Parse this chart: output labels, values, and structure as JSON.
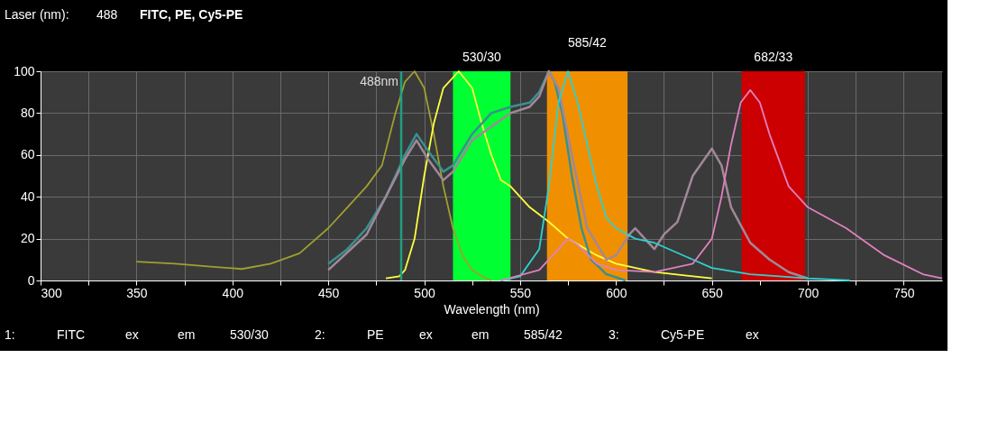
{
  "chart_data": {
    "type": "line",
    "title": "FITC, PE, Cy5-PE",
    "xlabel": "Wavelength (nm)",
    "xlim": [
      300,
      770
    ],
    "ylim": [
      0,
      100
    ],
    "xticks": [
      300,
      {
        "value": 325,
        "label": null
      },
      350,
      {
        "value": 375,
        "label": null
      },
      400,
      {
        "value": 425,
        "label": null
      },
      450,
      {
        "value": 475,
        "label": null
      },
      500,
      {
        "value": 525,
        "label": null
      },
      550,
      {
        "value": 575,
        "label": null
      },
      600,
      {
        "value": 625,
        "label": null
      },
      650,
      {
        "value": 675,
        "label": null
      },
      700,
      {
        "value": 725,
        "label": null
      },
      750
    ],
    "yticks": [
      0,
      20,
      40,
      60,
      80,
      100
    ],
    "grid": true,
    "marker": "none",
    "line_style": "solid",
    "series": [
      {
        "color": "#a0a030",
        "x": [
          350,
          370,
          390,
          405,
          420,
          435,
          450,
          460,
          470,
          478,
          485,
          490,
          495,
          500,
          505,
          510,
          515,
          520,
          525,
          530,
          535
        ],
        "values": [
          9,
          8,
          6.5,
          5.5,
          8,
          13,
          25,
          35,
          45,
          55,
          80,
          95,
          100,
          92,
          70,
          45,
          25,
          12,
          5,
          2,
          0
        ]
      },
      {
        "color": "#ffff40",
        "x": [
          480,
          487,
          490,
          495,
          500,
          505,
          510,
          518,
          525,
          530,
          535,
          540,
          545,
          555,
          565,
          575,
          590,
          600,
          620,
          650
        ],
        "values": [
          1,
          2,
          5,
          20,
          50,
          75,
          92,
          100,
          92,
          75,
          60,
          48,
          45,
          35,
          28,
          20,
          12,
          8,
          4,
          1
        ]
      },
      {
        "color": "#3a9090",
        "x": [
          450,
          460,
          470,
          480,
          490,
          496,
          502,
          510,
          515,
          525,
          535,
          545,
          555,
          560,
          565,
          568,
          572,
          577,
          582,
          587,
          595,
          605
        ],
        "values": [
          8,
          15,
          25,
          40,
          60,
          70,
          62,
          52,
          55,
          70,
          80,
          83,
          85,
          90,
          100,
          95,
          80,
          50,
          25,
          10,
          3,
          0
        ]
      },
      {
        "color": "#a08898",
        "x": [
          450,
          470,
          490,
          496,
          502,
          510,
          515,
          525,
          545,
          555,
          560,
          565,
          570,
          577,
          585,
          595,
          600,
          607,
          610,
          615,
          620,
          625,
          632,
          640,
          650,
          655,
          660,
          670,
          680,
          690,
          700
        ],
        "values": [
          5,
          22,
          58,
          67,
          58,
          48,
          52,
          67,
          80,
          83,
          88,
          100,
          92,
          60,
          25,
          10,
          12,
          22,
          25,
          20,
          15,
          22,
          28,
          50,
          63,
          55,
          35,
          18,
          10,
          4,
          1
        ]
      },
      {
        "color": "#30d0d0",
        "x": [
          540,
          550,
          560,
          565,
          570,
          575,
          580,
          585,
          590,
          595,
          600,
          610,
          620,
          630,
          640,
          650,
          670,
          700,
          722
        ],
        "values": [
          0,
          2,
          15,
          45,
          85,
          100,
          85,
          65,
          45,
          30,
          25,
          20,
          18,
          14,
          10,
          6,
          3,
          1,
          0
        ]
      },
      {
        "color": "#e080c0",
        "x": [
          540,
          560,
          570,
          575,
          580,
          590,
          600,
          620,
          640,
          650,
          655,
          660,
          665,
          670,
          675,
          680,
          690,
          700,
          720,
          740,
          760,
          770
        ],
        "values": [
          0,
          5,
          15,
          20,
          17,
          8,
          5,
          4,
          8,
          20,
          40,
          65,
          85,
          91,
          85,
          70,
          45,
          35,
          25,
          12,
          3,
          1
        ]
      }
    ],
    "bands": [
      {
        "axis": "x",
        "from": 515,
        "to": 545,
        "label": "530/30",
        "color": "#00ff33"
      },
      {
        "axis": "x",
        "from": 564,
        "to": 606,
        "label": "585/42",
        "color": "#f09000"
      },
      {
        "axis": "x",
        "from": 665.5,
        "to": 698.5,
        "label": "682/33",
        "color": "#cc0000"
      }
    ],
    "ref_lines": [
      {
        "axis": "x",
        "value": 488,
        "label": "488nm",
        "color": "#20a080"
      }
    ],
    "annotations": [
      "Laser (nm):",
      "488",
      "1:",
      "FITC",
      "ex",
      "em",
      "530/30",
      "2:",
      "PE",
      "ex",
      "em",
      "585/42",
      "3:",
      "Cy5-PE",
      "ex"
    ]
  }
}
